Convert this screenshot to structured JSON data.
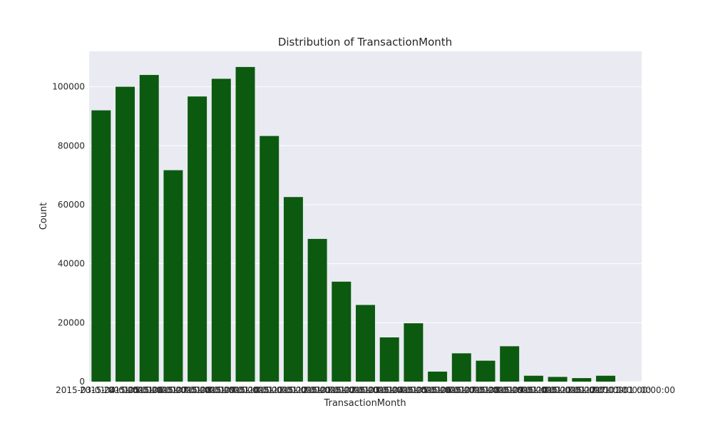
{
  "chart_data": {
    "type": "bar",
    "title": "Distribution of TransactionMonth",
    "xlabel": "TransactionMonth",
    "ylabel": "Count",
    "ylim": [
      0,
      112000
    ],
    "yticks": [
      "0",
      "20000",
      "40000",
      "60000",
      "80000",
      "100000"
    ],
    "ytick_values": [
      0,
      20000,
      40000,
      60000,
      80000,
      100000
    ],
    "grid": true,
    "bar_color": "#0b5a0f",
    "plot_bg": "#eaeaf2",
    "categories": [
      "2015-03-01 00:00:00",
      "2015-04-01 00:00:00",
      "2015-05-01 00:00:00",
      "2015-06-01 00:00:00",
      "2015-07-01 00:00:00",
      "2015-08-01 00:00:00",
      "2015-09-01 00:00:00",
      "2015-10-01 00:00:00",
      "2015-11-01 00:00:00",
      "2015-12-01 00:00:00",
      "2016-01-01 00:00:00",
      "2016-02-01 00:00:00",
      "2016-03-01 00:00:00",
      "2016-04-01 00:00:00",
      "2016-05-01 00:00:00",
      "2016-06-01 00:00:00",
      "2016-07-01 00:00:00",
      "2016-08-01 00:00:00",
      "2016-09-01 00:00:00",
      "2016-10-01 00:00:00",
      "2016-11-01 00:00:00",
      "2016-12-01 00:00:00",
      "2017-01-01 00:00:00"
    ],
    "values": [
      92000,
      100000,
      104000,
      71700,
      96700,
      102700,
      106700,
      83300,
      62600,
      48400,
      33900,
      26000,
      15000,
      19800,
      3400,
      9600,
      7100,
      12000,
      2000,
      1600,
      1200,
      2000,
      0
    ]
  }
}
